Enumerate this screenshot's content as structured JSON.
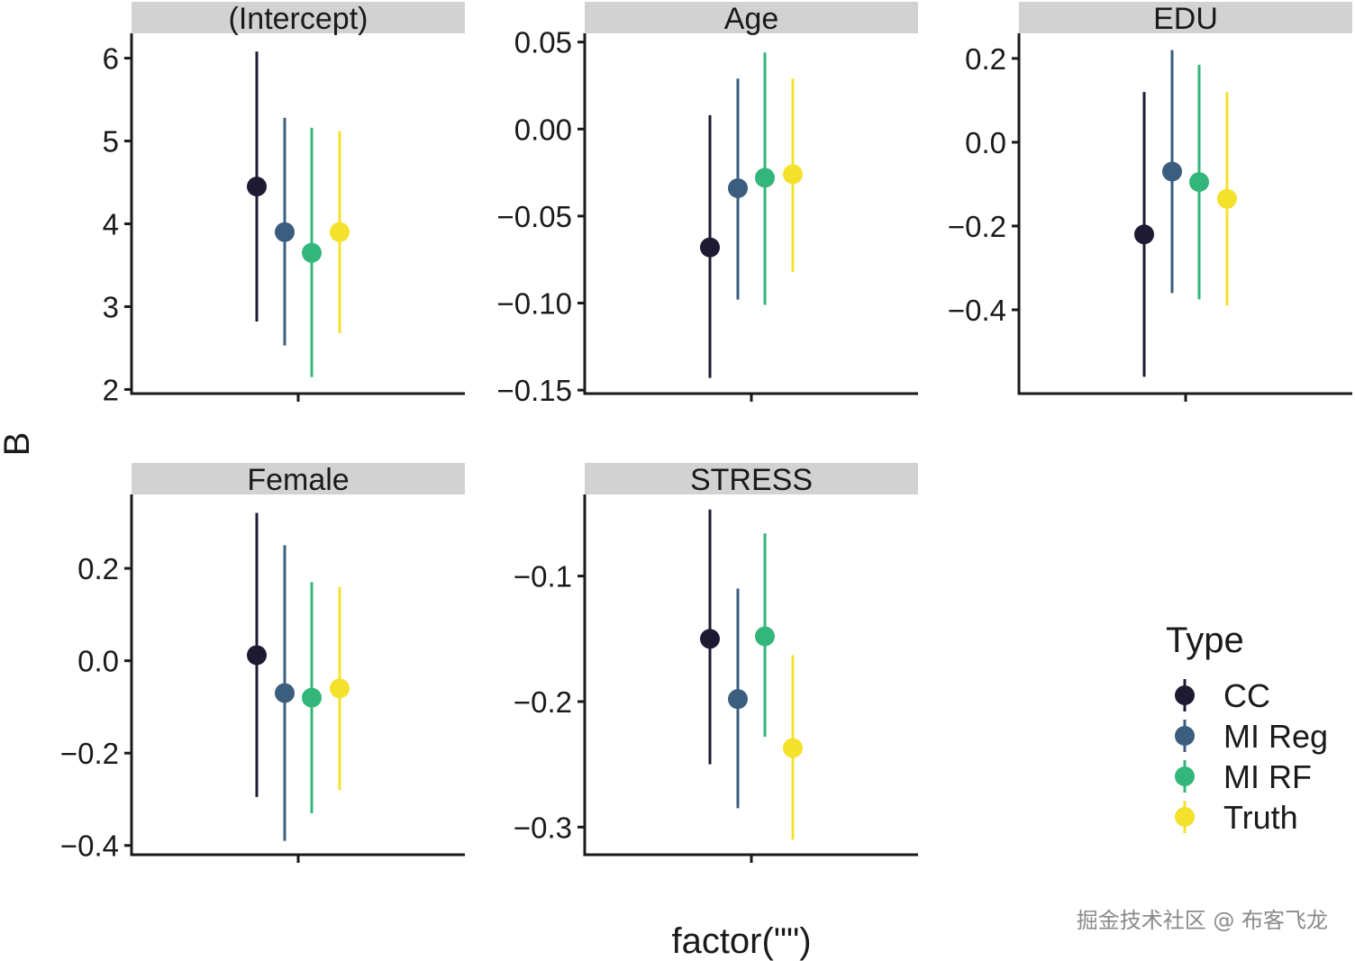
{
  "chart_data": {
    "type": "errorbar",
    "facet_by": "term",
    "xlabel": "factor(\"\")",
    "ylabel": "B",
    "x_category": "",
    "legend": {
      "title": "Type",
      "position": "right"
    },
    "grid": false,
    "series": [
      {
        "name": "CC",
        "color": "#1f1a33"
      },
      {
        "name": "MI Reg",
        "color": "#3b5e7e"
      },
      {
        "name": "MI RF",
        "color": "#33b679"
      },
      {
        "name": "Truth",
        "color": "#f4e12c"
      }
    ],
    "panels": [
      {
        "title": "(Intercept)",
        "ylim": [
          1.95,
          6.3
        ],
        "yticks": [
          2,
          3,
          4,
          5,
          6
        ],
        "ytick_labels": [
          "2",
          "3",
          "4",
          "5",
          "6"
        ],
        "estimates": [
          {
            "series": "CC",
            "y": 4.45,
            "low": 2.82,
            "high": 6.08
          },
          {
            "series": "MI Reg",
            "y": 3.9,
            "low": 2.53,
            "high": 5.28
          },
          {
            "series": "MI RF",
            "y": 3.65,
            "low": 2.15,
            "high": 5.16
          },
          {
            "series": "Truth",
            "y": 3.9,
            "low": 2.68,
            "high": 5.12
          }
        ]
      },
      {
        "title": "Age",
        "ylim": [
          -0.152,
          0.055
        ],
        "yticks": [
          0.05,
          0.0,
          -0.05,
          -0.1,
          -0.15
        ],
        "ytick_labels": [
          "0.05",
          "0.00",
          "−0.05",
          "−0.10",
          "−0.15"
        ],
        "estimates": [
          {
            "series": "CC",
            "y": -0.068,
            "low": -0.143,
            "high": 0.008
          },
          {
            "series": "MI Reg",
            "y": -0.034,
            "low": -0.098,
            "high": 0.029
          },
          {
            "series": "MI RF",
            "y": -0.028,
            "low": -0.101,
            "high": 0.044
          },
          {
            "series": "Truth",
            "y": -0.026,
            "low": -0.082,
            "high": 0.029
          }
        ]
      },
      {
        "title": "EDU",
        "ylim": [
          -0.6,
          0.26
        ],
        "yticks": [
          0.2,
          0.0,
          -0.2,
          -0.4
        ],
        "ytick_labels": [
          "0.2",
          "0.0",
          "−0.2",
          "−0.4"
        ],
        "estimates": [
          {
            "series": "CC",
            "y": -0.22,
            "low": -0.56,
            "high": 0.12
          },
          {
            "series": "MI Reg",
            "y": -0.07,
            "low": -0.36,
            "high": 0.22
          },
          {
            "series": "MI RF",
            "y": -0.095,
            "low": -0.375,
            "high": 0.185
          },
          {
            "series": "Truth",
            "y": -0.135,
            "low": -0.39,
            "high": 0.12
          }
        ]
      },
      {
        "title": "Female",
        "ylim": [
          -0.42,
          0.36
        ],
        "yticks": [
          0.2,
          0.0,
          -0.2,
          -0.4
        ],
        "ytick_labels": [
          "0.2",
          "0.0",
          "−0.2",
          "−0.4"
        ],
        "estimates": [
          {
            "series": "CC",
            "y": 0.012,
            "low": -0.295,
            "high": 0.32
          },
          {
            "series": "MI Reg",
            "y": -0.07,
            "low": -0.39,
            "high": 0.25
          },
          {
            "series": "MI RF",
            "y": -0.08,
            "low": -0.33,
            "high": 0.17
          },
          {
            "series": "Truth",
            "y": -0.06,
            "low": -0.28,
            "high": 0.16
          }
        ]
      },
      {
        "title": "STRESS",
        "ylim": [
          -0.322,
          -0.035
        ],
        "yticks": [
          -0.1,
          -0.2,
          -0.3
        ],
        "ytick_labels": [
          "−0.1",
          "−0.2",
          "−0.3"
        ],
        "estimates": [
          {
            "series": "CC",
            "y": -0.15,
            "low": -0.25,
            "high": -0.047
          },
          {
            "series": "MI Reg",
            "y": -0.198,
            "low": -0.285,
            "high": -0.11
          },
          {
            "series": "MI RF",
            "y": -0.148,
            "low": -0.228,
            "high": -0.066
          },
          {
            "series": "Truth",
            "y": -0.237,
            "low": -0.31,
            "high": -0.163
          }
        ]
      }
    ]
  },
  "watermark": "掘金技术社区 @ 布客飞龙"
}
